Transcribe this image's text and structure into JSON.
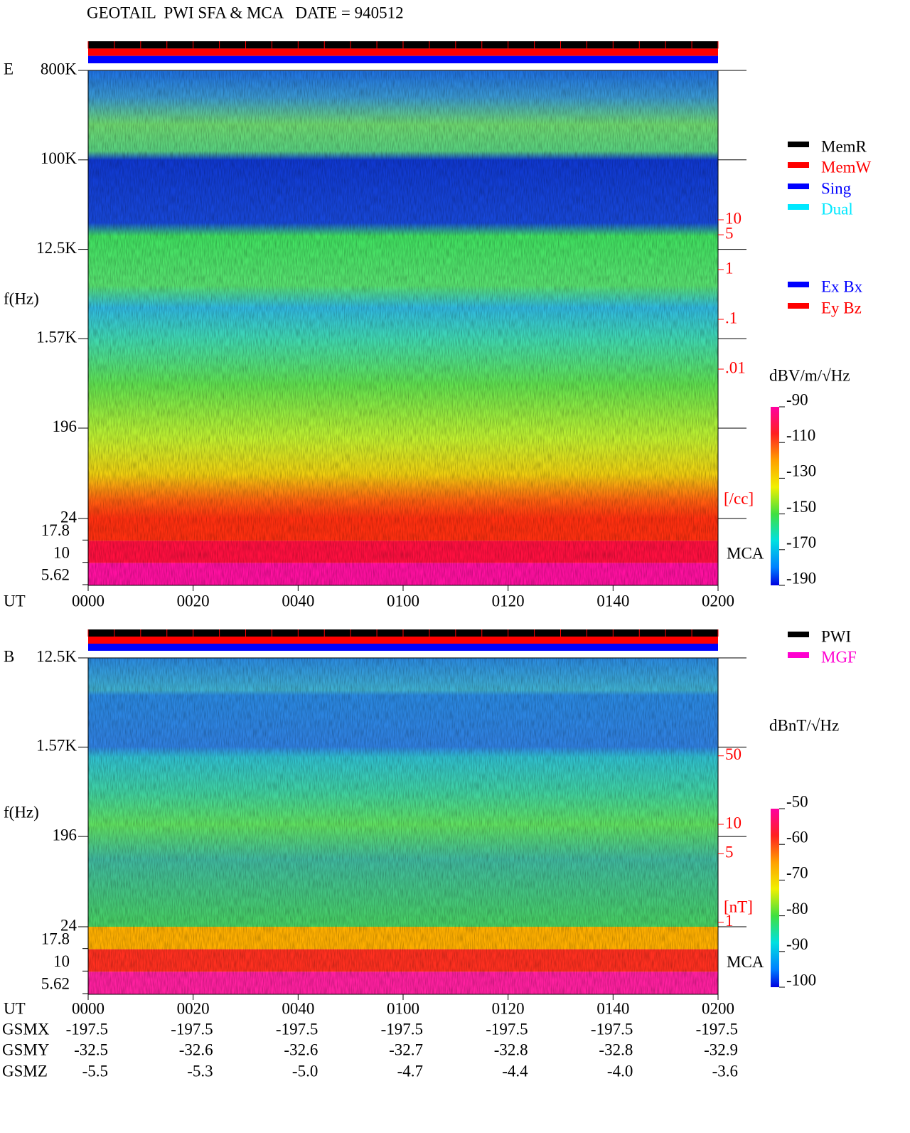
{
  "chart_data": [
    {
      "type": "spectrogram",
      "title": "GEOTAIL  PWI SFA & MCA   DATE = 940512",
      "component_label": "E",
      "ylabel": "f(Hz)",
      "xlabel": "UT",
      "ylog": true,
      "ylim": [
        24,
        800000
      ],
      "yticks": [
        {
          "value": 800000,
          "label": "800K"
        },
        {
          "value": 100000,
          "label": "100K"
        },
        {
          "value": 12500,
          "label": "12.5K"
        },
        {
          "value": 1570,
          "label": "1.57K"
        },
        196,
        24
      ],
      "mca_ticks": [
        17.8,
        10,
        5.62
      ],
      "mca_label": "MCA",
      "xlim": [
        0,
        120
      ],
      "xticks": [
        {
          "value": 0,
          "label": "0000"
        },
        {
          "value": 20,
          "label": "0020"
        },
        {
          "value": 40,
          "label": "0040"
        },
        {
          "value": 60,
          "label": "0100"
        },
        {
          "value": 80,
          "label": "0120"
        },
        {
          "value": 100,
          "label": "0140"
        },
        {
          "value": 120,
          "label": "0200"
        }
      ],
      "y2log": true,
      "y2lim": [
        1e-05,
        10000
      ],
      "y2ticks": [
        10,
        5,
        1,
        {
          "value": 0.1,
          "label": ".1"
        },
        {
          "value": 0.01,
          "label": ".01"
        }
      ],
      "y2label": "[/cc]",
      "y2color": "#ff0000",
      "legend": [
        {
          "name": "MemR",
          "color": "#000000"
        },
        {
          "name": "MemW",
          "color": "#ff0000"
        },
        {
          "name": "Sing",
          "color": "#0000ff"
        },
        {
          "name": "Dual",
          "color": "#00e8ff"
        }
      ],
      "legend2": [
        {
          "name": "Ex Bx",
          "color": "#0000ff"
        },
        {
          "name": "Ey Bz",
          "color": "#ff0000"
        }
      ],
      "colorbar": {
        "label": "dBV/m/√Hz",
        "zlim": [
          -190,
          -90
        ],
        "ticks": [
          -90,
          -110,
          -130,
          -150,
          -170,
          -190
        ]
      }
    },
    {
      "type": "spectrogram",
      "component_label": "B",
      "ylabel": "f(Hz)",
      "xlabel": "UT",
      "ylog": true,
      "ylim": [
        24,
        12500
      ],
      "yticks": [
        {
          "value": 12500,
          "label": "12.5K"
        },
        {
          "value": 1570,
          "label": "1.57K"
        },
        196,
        24
      ],
      "mca_ticks": [
        17.8,
        10,
        5.62
      ],
      "mca_label": "MCA",
      "xlim": [
        0,
        120
      ],
      "xticks": [
        {
          "value": 0,
          "label": "0000"
        },
        {
          "value": 20,
          "label": "0020"
        },
        {
          "value": 40,
          "label": "0040"
        },
        {
          "value": 60,
          "label": "0100"
        },
        {
          "value": 80,
          "label": "0120"
        },
        {
          "value": 100,
          "label": "0140"
        },
        {
          "value": 120,
          "label": "0200"
        }
      ],
      "y2log": true,
      "y2lim": [
        0.9,
        500
      ],
      "y2ticks": [
        50,
        10,
        5,
        1
      ],
      "y2label": "[nT]",
      "y2color": "#ff0000",
      "legend": [
        {
          "name": "PWI",
          "color": "#000000"
        },
        {
          "name": "MGF",
          "color": "#ff00d0"
        }
      ],
      "colorbar": {
        "label": "dBnT/√Hz",
        "zlim": [
          -100,
          -50
        ],
        "ticks": [
          -50,
          -60,
          -70,
          -80,
          -90,
          -100
        ]
      },
      "orbit": [
        {
          "name": "GSMX",
          "values": [
            -197.5,
            -197.5,
            -197.5,
            -197.5,
            -197.5,
            -197.5,
            -197.5
          ]
        },
        {
          "name": "GSMY",
          "values": [
            -32.5,
            -32.6,
            -32.6,
            -32.7,
            -32.8,
            -32.8,
            -32.9
          ]
        },
        {
          "name": "GSMZ",
          "values": [
            -5.5,
            -5.3,
            {
              "value": -5,
              "label": "-5.0"
            },
            -4.7,
            -4.4,
            {
              "value": -4,
              "label": "-4.0"
            },
            -3.6
          ]
        }
      ]
    }
  ]
}
